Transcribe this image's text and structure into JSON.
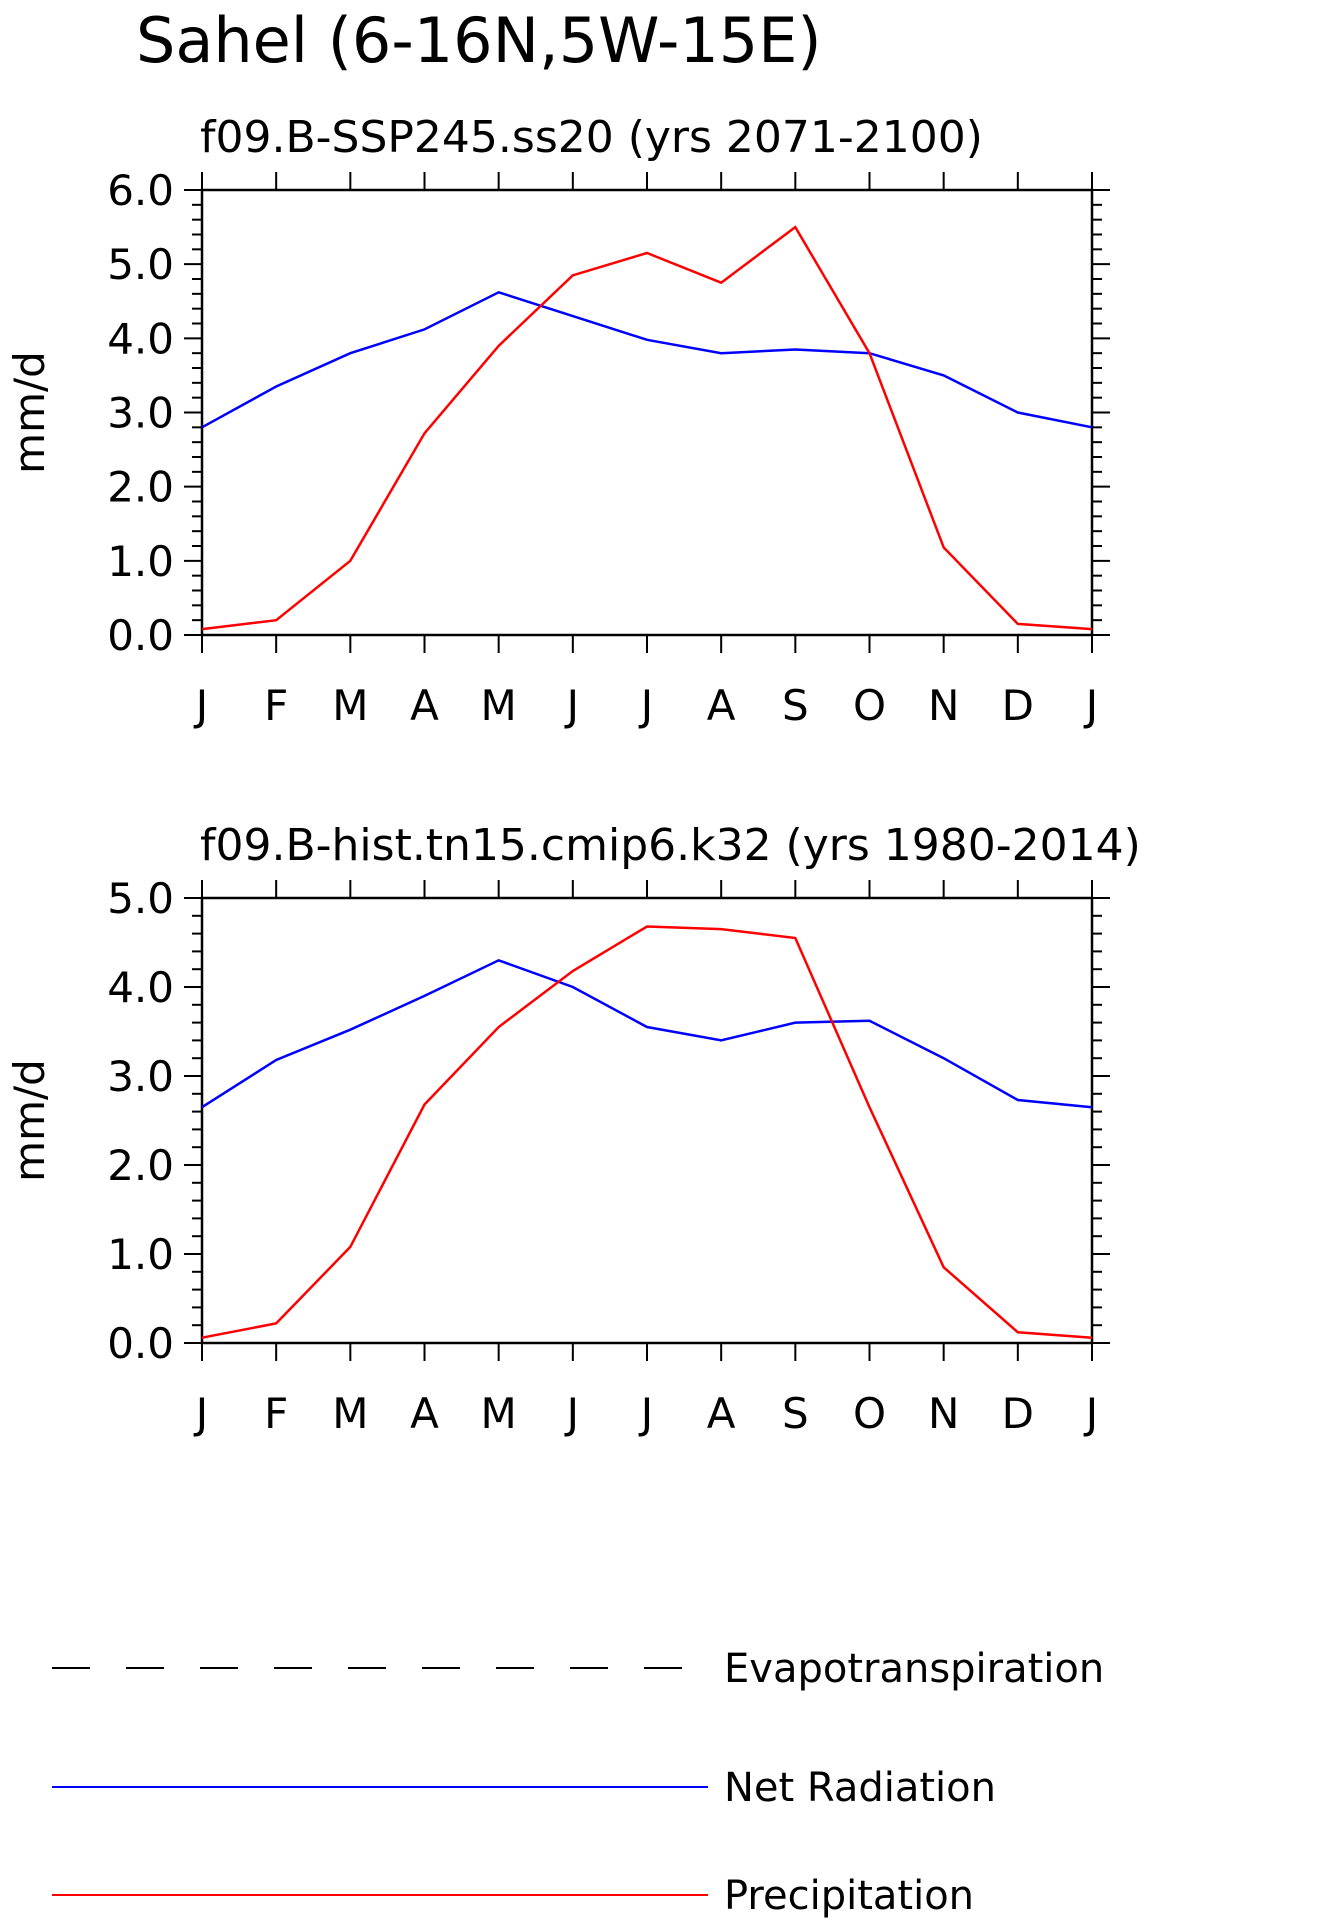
{
  "main_title": "Sahel (6-16N,5W-15E)",
  "legend": [
    {
      "label": "Evapotranspiration",
      "color": "#000000",
      "dash": true
    },
    {
      "label": "Net Radiation",
      "color": "#0000ff",
      "dash": false
    },
    {
      "label": "Precipitation",
      "color": "#ff0000",
      "dash": false
    }
  ],
  "chart_data": [
    {
      "type": "line",
      "title": "f09.B-SSP245.ss20 (yrs 2071-2100)",
      "ylabel": "mm/d",
      "xlabel": "",
      "categories": [
        "J",
        "F",
        "M",
        "A",
        "M",
        "J",
        "J",
        "A",
        "S",
        "O",
        "N",
        "D",
        "J"
      ],
      "ylim": [
        0,
        6
      ],
      "yticks": [
        "0.0",
        "1.0",
        "2.0",
        "3.0",
        "4.0",
        "5.0",
        "6.0"
      ],
      "series": [
        {
          "name": "Net Radiation",
          "color": "#0000ff",
          "values": [
            2.8,
            3.35,
            3.8,
            4.12,
            4.62,
            4.3,
            3.98,
            3.8,
            3.85,
            3.8,
            3.5,
            3.0,
            2.8
          ]
        },
        {
          "name": "Precipitation",
          "color": "#ff0000",
          "values": [
            0.08,
            0.2,
            1.0,
            2.72,
            3.9,
            4.85,
            5.15,
            4.75,
            5.5,
            3.8,
            1.18,
            0.15,
            0.08
          ]
        }
      ]
    },
    {
      "type": "line",
      "title": "f09.B-hist.tn15.cmip6.k32 (yrs 1980-2014)",
      "ylabel": "mm/d",
      "xlabel": "",
      "categories": [
        "J",
        "F",
        "M",
        "A",
        "M",
        "J",
        "J",
        "A",
        "S",
        "O",
        "N",
        "D",
        "J"
      ],
      "ylim": [
        0,
        5
      ],
      "yticks": [
        "0.0",
        "1.0",
        "2.0",
        "3.0",
        "4.0",
        "5.0"
      ],
      "series": [
        {
          "name": "Net Radiation",
          "color": "#0000ff",
          "values": [
            2.65,
            3.18,
            3.52,
            3.9,
            4.3,
            4.0,
            3.55,
            3.4,
            3.6,
            3.62,
            3.2,
            2.73,
            2.65
          ]
        },
        {
          "name": "Precipitation",
          "color": "#ff0000",
          "values": [
            0.06,
            0.22,
            1.08,
            2.68,
            3.55,
            4.18,
            4.68,
            4.65,
            4.55,
            2.65,
            0.85,
            0.12,
            0.06
          ]
        }
      ]
    }
  ]
}
